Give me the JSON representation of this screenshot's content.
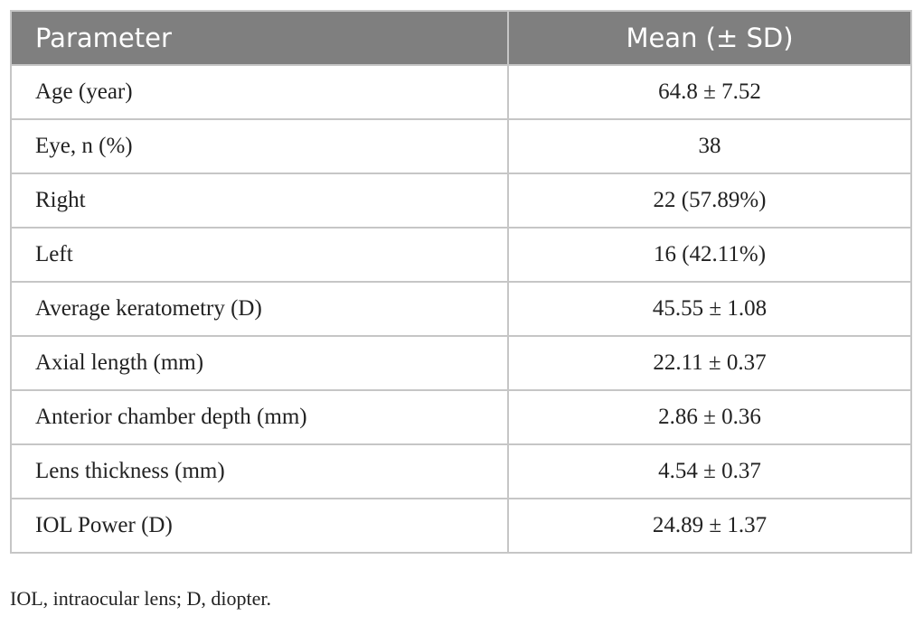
{
  "table": {
    "header": [
      "Parameter",
      "Mean (± SD)"
    ],
    "rows": [
      [
        "Age (year)",
        "64.8 ± 7.52"
      ],
      [
        "Eye, n (%)",
        "38"
      ],
      [
        "Right",
        "22 (57.89%)"
      ],
      [
        "Left",
        "16 (42.11%)"
      ],
      [
        "Average keratometry (D)",
        "45.55 ± 1.08"
      ],
      [
        "Axial length (mm)",
        "22.11 ± 0.37"
      ],
      [
        "Anterior chamber depth (mm)",
        "2.86 ± 0.36"
      ],
      [
        "Lens thickness (mm)",
        "4.54 ± 0.37"
      ],
      [
        "IOL Power (D)",
        "24.89 ± 1.37"
      ]
    ]
  },
  "footnote": "IOL, intraocular lens; D, diopter."
}
